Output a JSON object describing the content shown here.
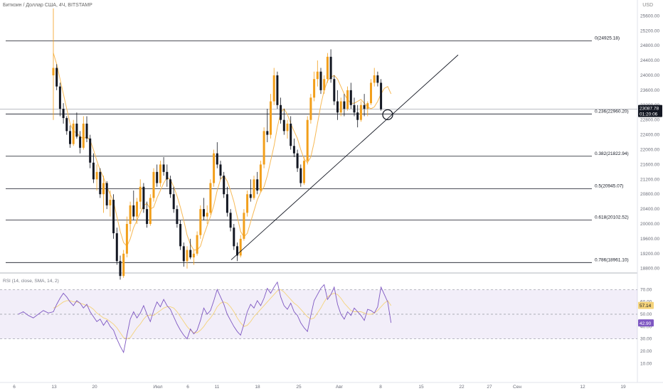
{
  "header": {
    "title": "Биткоин / Доллар США, 4Ч, BITSTAMP",
    "currency": "USD"
  },
  "chart_data": {
    "type": "candlestick",
    "price_axis": {
      "range": [
        18680,
        25760
      ],
      "ticks": [
        25600,
        25200,
        24800,
        24400,
        24000,
        23600,
        23200,
        22800,
        22400,
        22000,
        21600,
        21200,
        20800,
        20400,
        20000,
        19600,
        19200,
        18800
      ]
    },
    "last_price": {
      "value": "23087.78",
      "countdown": "01:20:06"
    },
    "fibonacci_levels": [
      {
        "label": "0(24925.18)",
        "price": 24925.18
      },
      {
        "label": "0.236(22960.20)",
        "price": 22960.2
      },
      {
        "label": "0.382(21822.94)",
        "price": 21822.94
      },
      {
        "label": "0.5(20945.07)",
        "price": 20945.07
      },
      {
        "label": "0.618(20102.52)",
        "price": 20102.52
      },
      {
        "label": "0.786(18961.10)",
        "price": 18961.1
      }
    ],
    "x_axis": {
      "ticks": [
        "6",
        "13",
        "20",
        "Июл",
        "6",
        "11",
        "18",
        "25",
        "Авг",
        "8",
        "15",
        "22",
        "27",
        "Сен",
        "12",
        "19"
      ]
    },
    "candles": [
      [
        24000,
        25800,
        22800,
        24200
      ],
      [
        24200,
        24300,
        23600,
        23700
      ],
      [
        23700,
        23800,
        22900,
        23100
      ],
      [
        23100,
        23250,
        22700,
        22850
      ],
      [
        22850,
        22900,
        22400,
        22500
      ],
      [
        22500,
        22650,
        22050,
        22150
      ],
      [
        22150,
        22800,
        22100,
        22700
      ],
      [
        22700,
        23000,
        22300,
        22350
      ],
      [
        22350,
        22500,
        21900,
        22050
      ],
      [
        22050,
        22900,
        22000,
        22700
      ],
      [
        22700,
        22900,
        22200,
        22300
      ],
      [
        22300,
        22400,
        21500,
        21650
      ],
      [
        21650,
        21900,
        21100,
        21200
      ],
      [
        21200,
        21600,
        20900,
        21400
      ],
      [
        21400,
        21500,
        20700,
        20800
      ],
      [
        20800,
        21300,
        20300,
        21100
      ],
      [
        21100,
        21150,
        20400,
        20500
      ],
      [
        20500,
        20900,
        20200,
        20650
      ],
      [
        20650,
        20800,
        19600,
        19750
      ],
      [
        19750,
        19900,
        18900,
        19000
      ],
      [
        19000,
        19150,
        18500,
        18600
      ],
      [
        18600,
        19300,
        18550,
        19200
      ],
      [
        19200,
        20200,
        19100,
        20000
      ],
      [
        20000,
        20600,
        19800,
        20500
      ],
      [
        20500,
        20900,
        20100,
        20200
      ],
      [
        20200,
        20700,
        20000,
        20600
      ],
      [
        20600,
        21200,
        20400,
        21000
      ],
      [
        21000,
        21100,
        20300,
        20400
      ],
      [
        20400,
        20600,
        19900,
        20000
      ],
      [
        20000,
        20800,
        19950,
        20700
      ],
      [
        20700,
        21500,
        20600,
        21400
      ],
      [
        21400,
        21600,
        21000,
        21100
      ],
      [
        21100,
        21700,
        21000,
        21600
      ],
      [
        21600,
        21800,
        21300,
        21400
      ],
      [
        21400,
        21600,
        21000,
        21200
      ],
      [
        21200,
        21300,
        20700,
        20800
      ],
      [
        20800,
        21000,
        20300,
        20400
      ],
      [
        20400,
        20500,
        19900,
        20000
      ],
      [
        20000,
        20100,
        19300,
        19400
      ],
      [
        19400,
        19500,
        18850,
        19000
      ],
      [
        19000,
        19400,
        18800,
        19300
      ],
      [
        19300,
        19600,
        19050,
        19100
      ],
      [
        19100,
        19300,
        18900,
        19200
      ],
      [
        19200,
        19800,
        19150,
        19700
      ],
      [
        19700,
        20500,
        19600,
        20400
      ],
      [
        20400,
        20700,
        20100,
        20200
      ],
      [
        20200,
        20500,
        20000,
        20300
      ],
      [
        20300,
        21200,
        20250,
        21100
      ],
      [
        21100,
        22000,
        21000,
        21900
      ],
      [
        21900,
        22200,
        21500,
        21600
      ],
      [
        21600,
        21700,
        21200,
        21300
      ],
      [
        21300,
        21400,
        20700,
        20800
      ],
      [
        20800,
        21000,
        20200,
        20300
      ],
      [
        20300,
        20400,
        19800,
        19900
      ],
      [
        19900,
        20000,
        19300,
        19400
      ],
      [
        19400,
        19500,
        19000,
        19150
      ],
      [
        19150,
        19700,
        19100,
        19600
      ],
      [
        19600,
        20400,
        19550,
        20300
      ],
      [
        20300,
        20900,
        20200,
        20800
      ],
      [
        20800,
        21200,
        20600,
        20700
      ],
      [
        20700,
        21300,
        20650,
        21200
      ],
      [
        21200,
        21400,
        20800,
        20900
      ],
      [
        20900,
        21700,
        20850,
        21600
      ],
      [
        21600,
        22600,
        21500,
        22500
      ],
      [
        22500,
        23100,
        22200,
        22400
      ],
      [
        22400,
        23500,
        22300,
        23300
      ],
      [
        23300,
        24200,
        23200,
        24000
      ],
      [
        24000,
        24100,
        23100,
        23200
      ],
      [
        23200,
        23400,
        22700,
        22800
      ],
      [
        22800,
        23100,
        22400,
        22500
      ],
      [
        22500,
        22800,
        22300,
        22700
      ],
      [
        22700,
        22900,
        22000,
        22100
      ],
      [
        22100,
        22300,
        21800,
        21900
      ],
      [
        21900,
        22000,
        21400,
        21500
      ],
      [
        21500,
        21600,
        21000,
        21100
      ],
      [
        21100,
        21800,
        21050,
        21700
      ],
      [
        21700,
        22900,
        21600,
        22800
      ],
      [
        22800,
        23500,
        22700,
        23400
      ],
      [
        23400,
        24100,
        23300,
        23900
      ],
      [
        23900,
        24400,
        23700,
        24100
      ],
      [
        24100,
        24200,
        23500,
        23600
      ],
      [
        23600,
        24000,
        23500,
        23900
      ],
      [
        23900,
        24600,
        23800,
        24500
      ],
      [
        24500,
        24700,
        23800,
        23900
      ],
      [
        23900,
        24000,
        23200,
        23300
      ],
      [
        23300,
        23600,
        22800,
        23000
      ],
      [
        23000,
        23400,
        22900,
        23300
      ],
      [
        23300,
        23500,
        22900,
        23100
      ],
      [
        23100,
        23700,
        23050,
        23600
      ],
      [
        23600,
        23800,
        23100,
        23200
      ],
      [
        23200,
        23400,
        22900,
        23000
      ],
      [
        23000,
        23200,
        22600,
        22800
      ],
      [
        22800,
        23300,
        22750,
        23200
      ],
      [
        23200,
        23500,
        22900,
        23100
      ],
      [
        23100,
        23300,
        22900,
        23250
      ],
      [
        23250,
        23900,
        23200,
        23800
      ],
      [
        23800,
        24200,
        23700,
        24000
      ],
      [
        24000,
        24100,
        23700,
        23800
      ],
      [
        23800,
        23900,
        23050,
        23090
      ]
    ],
    "ma_line": [
      24600,
      24300,
      23900,
      23500,
      23100,
      22700,
      22500,
      22450,
      22350,
      22300,
      22350,
      22250,
      22000,
      21700,
      21450,
      21250,
      21000,
      20800,
      20600,
      20200,
      19800,
      19500,
      19400,
      19600,
      19900,
      20100,
      20300,
      20500,
      20550,
      20400,
      20450,
      20700,
      20900,
      21100,
      21250,
      21200,
      21000,
      20750,
      20450,
      20100,
      19700,
      19450,
      19300,
      19300,
      19400,
      19700,
      19950,
      20200,
      20500,
      20900,
      21200,
      21300,
      21150,
      20900,
      20600,
      20200,
      19800,
      19650,
      19750,
      20050,
      20350,
      20650,
      20850,
      21000,
      21300,
      21700,
      22100,
      22600,
      23000,
      23100,
      22950,
      22700,
      22500,
      22300,
      22000,
      21750,
      21650,
      21800,
      22200,
      22700,
      23200,
      23600,
      23850,
      23950,
      24000,
      23900,
      23700,
      23500,
      23350,
      23250,
      23250,
      23300,
      23350,
      23250,
      23150,
      23100,
      23150,
      23300,
      23500,
      23650,
      23700,
      23500
    ],
    "trendline": {
      "from": [
        39,
        19035
      ],
      "to": [
        122,
        24550
      ]
    },
    "marker_circle": {
      "candle": 101,
      "price": 22940
    },
    "rsi": {
      "legend": "RSI (14, close, SMA, 14, 2)",
      "range": [
        5,
        80
      ],
      "ticks": [
        70.0,
        60.0,
        50.0,
        40.0,
        30.0,
        20.0,
        10.0
      ],
      "upper_band": 70,
      "mid": 50,
      "lower_band": 30,
      "current_value": "42.90",
      "ma_value": "57.14",
      "values": [
        52,
        58,
        63,
        67,
        64,
        60,
        57,
        61,
        59,
        55,
        58,
        52,
        48,
        44,
        46,
        41,
        45,
        40,
        37,
        30,
        24,
        19,
        33,
        46,
        52,
        47,
        51,
        57,
        50,
        44,
        53,
        60,
        56,
        62,
        57,
        54,
        48,
        42,
        37,
        33,
        30,
        38,
        34,
        37,
        45,
        55,
        50,
        53,
        61,
        70,
        64,
        58,
        50,
        45,
        40,
        36,
        33,
        42,
        52,
        58,
        55,
        61,
        57,
        63,
        71,
        67,
        72,
        76,
        64,
        57,
        54,
        59,
        52,
        49,
        43,
        39,
        36,
        49,
        61,
        66,
        71,
        74,
        62,
        66,
        72,
        58,
        50,
        46,
        52,
        49,
        55,
        52,
        49,
        45,
        54,
        53,
        51,
        56,
        72,
        66,
        60,
        43
      ],
      "ma": [
        55,
        56,
        58,
        60,
        61,
        61,
        60,
        60,
        59,
        58,
        57,
        56,
        54,
        51,
        49,
        47,
        46,
        44,
        42,
        39,
        35,
        31,
        30,
        31,
        35,
        39,
        42,
        46,
        49,
        49,
        49,
        51,
        53,
        55,
        56,
        56,
        55,
        52,
        48,
        44,
        40,
        37,
        35,
        35,
        37,
        40,
        44,
        47,
        51,
        56,
        59,
        60,
        59,
        56,
        52,
        47,
        43,
        40,
        41,
        44,
        48,
        51,
        54,
        57,
        60,
        63,
        66,
        69,
        70,
        68,
        65,
        62,
        59,
        57,
        54,
        51,
        48,
        46,
        47,
        51,
        55,
        60,
        64,
        66,
        67,
        66,
        63,
        59,
        56,
        53,
        52,
        52,
        52,
        51,
        50,
        50,
        51,
        53,
        56,
        59,
        61,
        57
      ]
    }
  }
}
